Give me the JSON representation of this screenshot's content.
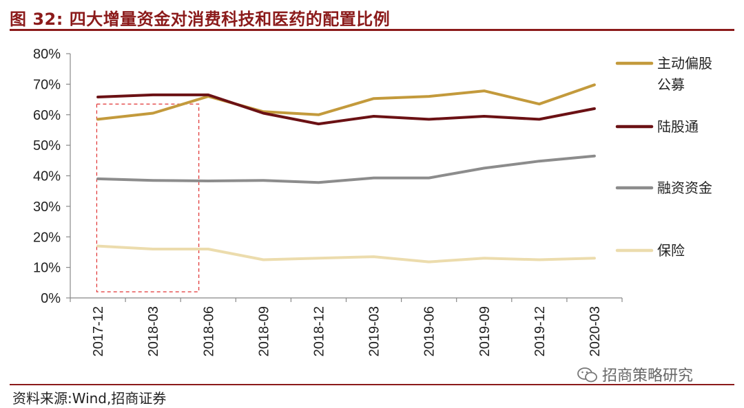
{
  "header": {
    "figure_label": "图 32:",
    "title": "四大增量资金对消费科技和医药的配置比例"
  },
  "footer": {
    "source": "资料来源:Wind,招商证券",
    "watermark": "招商策略研究"
  },
  "chart_data": {
    "type": "line",
    "title": "四大增量资金对消费科技和医药的配置比例",
    "xlabel": "",
    "ylabel": "",
    "x": [
      "2017-12",
      "2018-03",
      "2018-06",
      "2018-09",
      "2018-12",
      "2019-03",
      "2019-06",
      "2019-09",
      "2019-12",
      "2020-03"
    ],
    "ylim": [
      0,
      80
    ],
    "yticks": [
      0,
      10,
      20,
      30,
      40,
      50,
      60,
      70,
      80
    ],
    "ytick_labels": [
      "0%",
      "10%",
      "20%",
      "30%",
      "40%",
      "50%",
      "60%",
      "70%",
      "80%"
    ],
    "grid": false,
    "legend_position": "right",
    "series": [
      {
        "name": "主动偏股公募",
        "legend_lines": [
          "主动偏股",
          "公募"
        ],
        "color": "#c39a3c",
        "values": [
          58.5,
          60.5,
          66.0,
          61.0,
          60.0,
          65.3,
          66.0,
          67.8,
          63.5,
          69.8
        ]
      },
      {
        "name": "陆股通",
        "legend_lines": [
          "陆股通"
        ],
        "color": "#6b1114",
        "values": [
          65.8,
          66.5,
          66.5,
          60.5,
          57.0,
          59.5,
          58.5,
          59.5,
          58.5,
          62.0
        ]
      },
      {
        "name": "融资资金",
        "legend_lines": [
          "融资资金"
        ],
        "color": "#8c8c8c",
        "values": [
          39.0,
          38.5,
          38.3,
          38.5,
          37.8,
          39.3,
          39.3,
          42.5,
          44.8,
          46.5
        ]
      },
      {
        "name": "保险",
        "legend_lines": [
          "保险"
        ],
        "color": "#ecdcad",
        "values": [
          17.0,
          16.0,
          16.0,
          12.5,
          13.0,
          13.5,
          11.8,
          13.0,
          12.5,
          13.0
        ]
      }
    ],
    "highlight_box": {
      "from": "2017-12",
      "to": "2018-06",
      "ylim": [
        2,
        63.5
      ],
      "color": "#e03030",
      "style": "dashed"
    }
  }
}
